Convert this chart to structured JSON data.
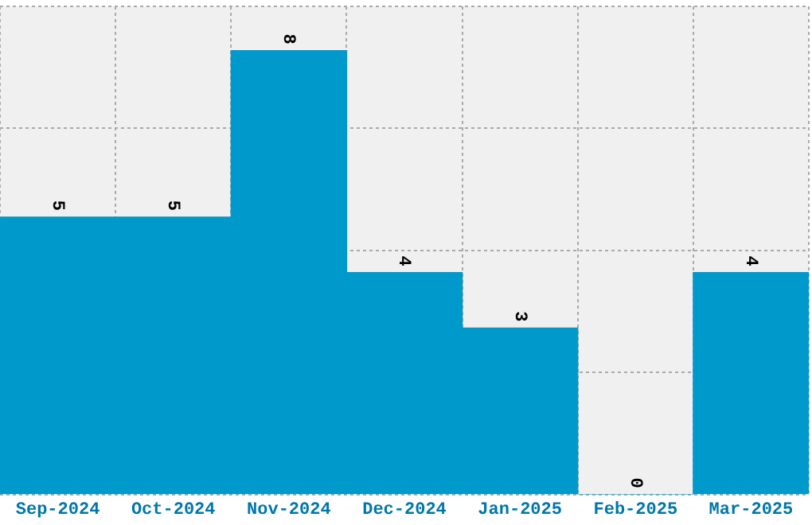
{
  "chart_data": {
    "type": "bar",
    "categories": [
      "Sep-2024",
      "Oct-2024",
      "Nov-2024",
      "Dec-2024",
      "Jan-2025",
      "Feb-2025",
      "Mar-2025"
    ],
    "values": [
      5,
      5,
      8,
      4,
      3,
      0,
      4
    ],
    "color": "#0099cc",
    "ylim": [
      0,
      8.8
    ],
    "yticks": [
      {
        "value": 0,
        "label": null
      },
      {
        "value": 2.2,
        "label": null
      },
      {
        "value": 4.4,
        "label": null
      },
      {
        "value": 6.6,
        "label": null
      },
      {
        "value": 8.8,
        "label": null
      }
    ],
    "grid": true,
    "tick_labels": "x",
    "data_labels": true
  }
}
